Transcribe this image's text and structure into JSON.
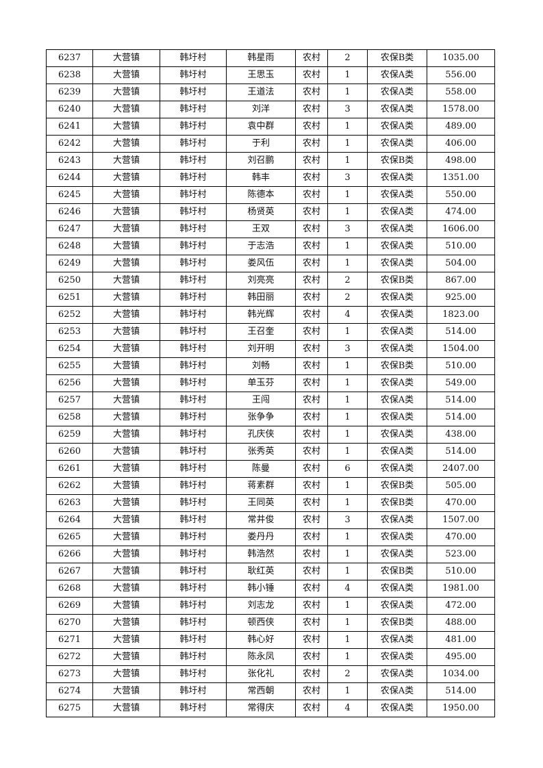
{
  "table": {
    "rows": [
      [
        "6237",
        "大营镇",
        "韩圩村",
        "韩星雨",
        "农村",
        "2",
        "农保B类",
        "1035.00"
      ],
      [
        "6238",
        "大营镇",
        "韩圩村",
        "王思玉",
        "农村",
        "1",
        "农保A类",
        "556.00"
      ],
      [
        "6239",
        "大营镇",
        "韩圩村",
        "王道法",
        "农村",
        "1",
        "农保A类",
        "558.00"
      ],
      [
        "6240",
        "大营镇",
        "韩圩村",
        "刘洋",
        "农村",
        "3",
        "农保A类",
        "1578.00"
      ],
      [
        "6241",
        "大营镇",
        "韩圩村",
        "袁中群",
        "农村",
        "1",
        "农保A类",
        "489.00"
      ],
      [
        "6242",
        "大营镇",
        "韩圩村",
        "于利",
        "农村",
        "1",
        "农保A类",
        "406.00"
      ],
      [
        "6243",
        "大营镇",
        "韩圩村",
        "刘召鹏",
        "农村",
        "1",
        "农保B类",
        "498.00"
      ],
      [
        "6244",
        "大营镇",
        "韩圩村",
        "韩丰",
        "农村",
        "3",
        "农保A类",
        "1351.00"
      ],
      [
        "6245",
        "大营镇",
        "韩圩村",
        "陈德本",
        "农村",
        "1",
        "农保A类",
        "550.00"
      ],
      [
        "6246",
        "大营镇",
        "韩圩村",
        "杨贤英",
        "农村",
        "1",
        "农保A类",
        "474.00"
      ],
      [
        "6247",
        "大营镇",
        "韩圩村",
        "王双",
        "农村",
        "3",
        "农保A类",
        "1606.00"
      ],
      [
        "6248",
        "大营镇",
        "韩圩村",
        "于志浩",
        "农村",
        "1",
        "农保A类",
        "510.00"
      ],
      [
        "6249",
        "大营镇",
        "韩圩村",
        "娄风伍",
        "农村",
        "1",
        "农保A类",
        "504.00"
      ],
      [
        "6250",
        "大营镇",
        "韩圩村",
        "刘亮亮",
        "农村",
        "2",
        "农保B类",
        "867.00"
      ],
      [
        "6251",
        "大营镇",
        "韩圩村",
        "韩田丽",
        "农村",
        "2",
        "农保A类",
        "925.00"
      ],
      [
        "6252",
        "大营镇",
        "韩圩村",
        "韩光辉",
        "农村",
        "4",
        "农保A类",
        "1823.00"
      ],
      [
        "6253",
        "大营镇",
        "韩圩村",
        "王召奎",
        "农村",
        "1",
        "农保A类",
        "514.00"
      ],
      [
        "6254",
        "大营镇",
        "韩圩村",
        "刘开明",
        "农村",
        "3",
        "农保A类",
        "1504.00"
      ],
      [
        "6255",
        "大营镇",
        "韩圩村",
        "刘畅",
        "农村",
        "1",
        "农保B类",
        "510.00"
      ],
      [
        "6256",
        "大营镇",
        "韩圩村",
        "单玉芬",
        "农村",
        "1",
        "农保A类",
        "549.00"
      ],
      [
        "6257",
        "大营镇",
        "韩圩村",
        "王闯",
        "农村",
        "1",
        "农保A类",
        "514.00"
      ],
      [
        "6258",
        "大营镇",
        "韩圩村",
        "张争争",
        "农村",
        "1",
        "农保A类",
        "514.00"
      ],
      [
        "6259",
        "大营镇",
        "韩圩村",
        "孔庆侠",
        "农村",
        "1",
        "农保A类",
        "438.00"
      ],
      [
        "6260",
        "大营镇",
        "韩圩村",
        "张秀英",
        "农村",
        "1",
        "农保A类",
        "514.00"
      ],
      [
        "6261",
        "大营镇",
        "韩圩村",
        "陈曼",
        "农村",
        "6",
        "农保A类",
        "2407.00"
      ],
      [
        "6262",
        "大营镇",
        "韩圩村",
        "蒋素群",
        "农村",
        "1",
        "农保B类",
        "505.00"
      ],
      [
        "6263",
        "大营镇",
        "韩圩村",
        "王同英",
        "农村",
        "1",
        "农保B类",
        "470.00"
      ],
      [
        "6264",
        "大营镇",
        "韩圩村",
        "常井俊",
        "农村",
        "3",
        "农保A类",
        "1507.00"
      ],
      [
        "6265",
        "大营镇",
        "韩圩村",
        "娄丹丹",
        "农村",
        "1",
        "农保A类",
        "470.00"
      ],
      [
        "6266",
        "大营镇",
        "韩圩村",
        "韩浩然",
        "农村",
        "1",
        "农保A类",
        "523.00"
      ],
      [
        "6267",
        "大营镇",
        "韩圩村",
        "耿红英",
        "农村",
        "1",
        "农保B类",
        "510.00"
      ],
      [
        "6268",
        "大营镇",
        "韩圩村",
        "韩小锤",
        "农村",
        "4",
        "农保A类",
        "1981.00"
      ],
      [
        "6269",
        "大营镇",
        "韩圩村",
        "刘志龙",
        "农村",
        "1",
        "农保A类",
        "472.00"
      ],
      [
        "6270",
        "大营镇",
        "韩圩村",
        "顿西侠",
        "农村",
        "1",
        "农保B类",
        "488.00"
      ],
      [
        "6271",
        "大营镇",
        "韩圩村",
        "韩心好",
        "农村",
        "1",
        "农保A类",
        "481.00"
      ],
      [
        "6272",
        "大营镇",
        "韩圩村",
        "陈永凤",
        "农村",
        "1",
        "农保A类",
        "495.00"
      ],
      [
        "6273",
        "大营镇",
        "韩圩村",
        "张化礼",
        "农村",
        "2",
        "农保A类",
        "1034.00"
      ],
      [
        "6274",
        "大营镇",
        "韩圩村",
        "常西朝",
        "农村",
        "1",
        "农保A类",
        "514.00"
      ],
      [
        "6275",
        "大营镇",
        "韩圩村",
        "常得庆",
        "农村",
        "4",
        "农保A类",
        "1950.00"
      ]
    ]
  }
}
